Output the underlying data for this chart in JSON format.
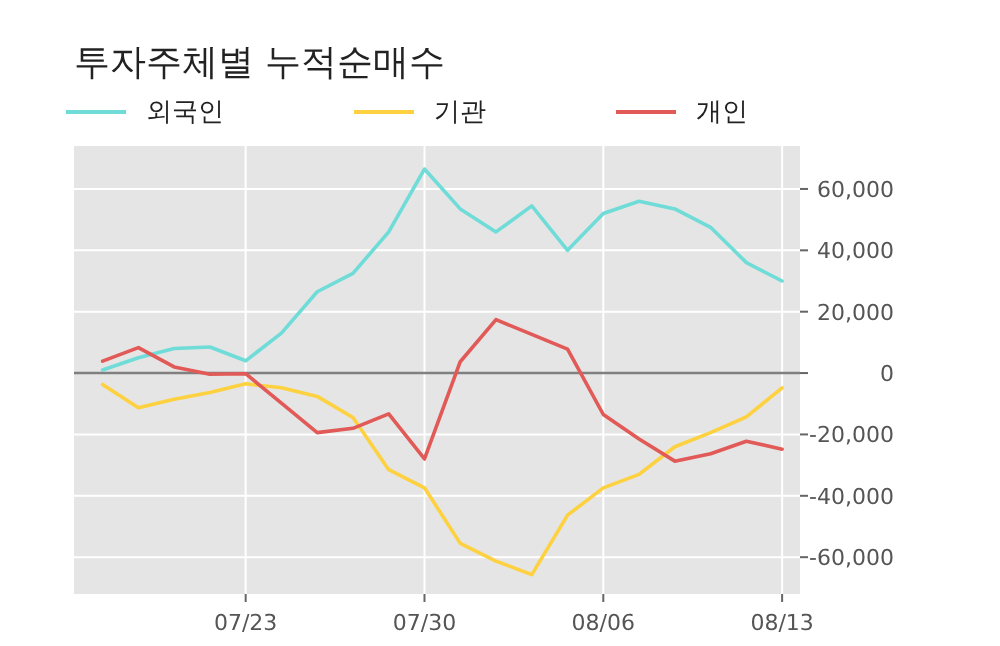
{
  "chart_data": {
    "type": "line",
    "title": "투자주체별 누적순매수",
    "categories": [
      null,
      null,
      null,
      null,
      "07/23",
      null,
      null,
      null,
      null,
      "07/30",
      null,
      null,
      null,
      null,
      "08/06",
      null,
      null,
      null,
      null,
      "08/13"
    ],
    "series": [
      {
        "name": "외국인",
        "color": "#6fdcd8",
        "values": [
          1000,
          5000,
          8000,
          8500,
          4000,
          13000,
          26500,
          32500,
          46000,
          66500,
          53500,
          46000,
          54500,
          40000,
          52000,
          56000,
          53500,
          47500,
          36000,
          30000
        ]
      },
      {
        "name": "기관",
        "color": "#fdd13f",
        "values": [
          -3700,
          -11300,
          -8500,
          -6300,
          -3500,
          -4800,
          -7600,
          -14500,
          -31500,
          -37400,
          -55500,
          -61300,
          -65700,
          -46300,
          -37400,
          -33000,
          -24000,
          -19400,
          -14300,
          -4800
        ]
      },
      {
        "name": "개인",
        "color": "#e15a57",
        "values": [
          3900,
          8300,
          2000,
          -400,
          -200,
          -9800,
          -19400,
          -18000,
          -13300,
          -28000,
          3700,
          17400,
          12600,
          7800,
          -13500,
          -21500,
          -28700,
          -26300,
          -22200,
          -24800
        ]
      }
    ],
    "ylim": [
      -72000,
      74000
    ],
    "yticks": [
      {
        "value": -60000,
        "label": "-60,000"
      },
      {
        "value": -40000,
        "label": "-40,000"
      },
      {
        "value": -20000,
        "label": "-20,000"
      },
      0,
      {
        "value": 20000,
        "label": "20,000"
      },
      {
        "value": 40000,
        "label": "40,000"
      },
      {
        "value": 60000,
        "label": "60,000"
      }
    ],
    "ref_lines": [
      {
        "axis": "y",
        "value": 0,
        "color": "#808080"
      }
    ],
    "grid": true,
    "legend": "top"
  }
}
